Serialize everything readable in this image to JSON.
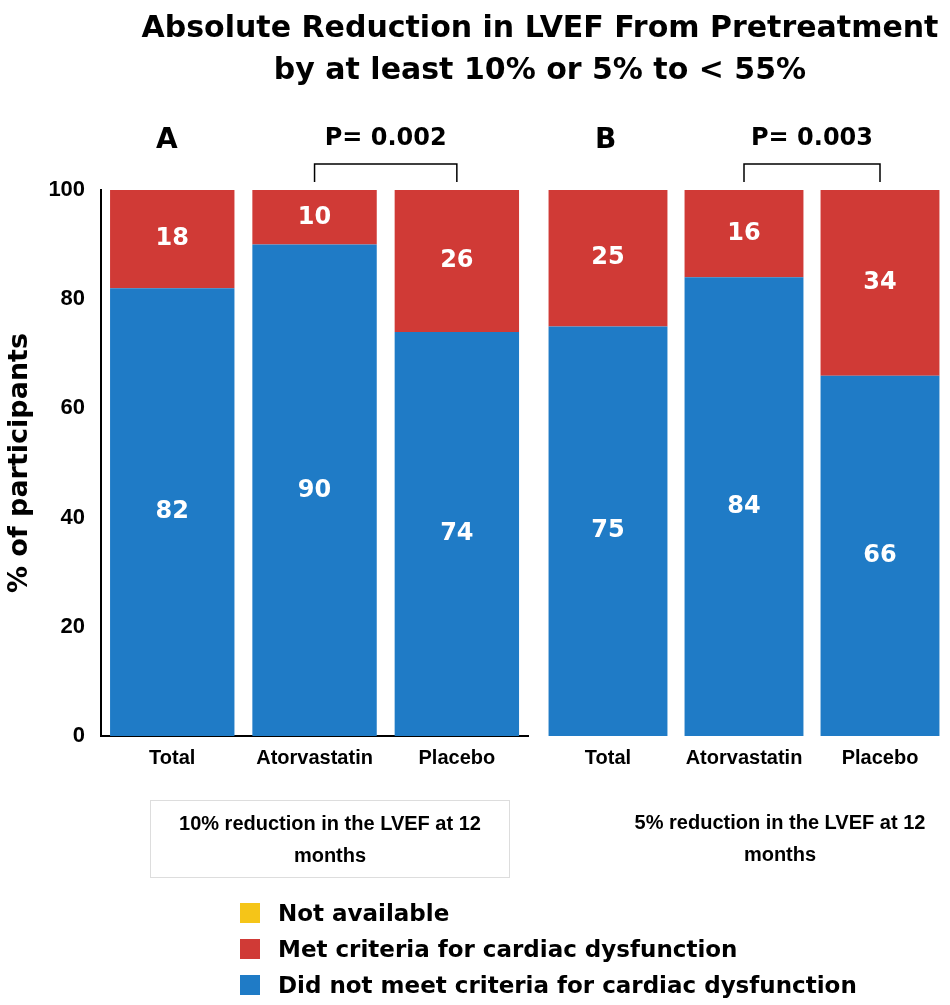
{
  "chart_data": [
    {
      "type": "bar",
      "title": "Absolute Reduction in LVEF From Pretreatment by at least 10% or 5% to < 55%",
      "subtitle": "A",
      "xlabel": "10% reduction in the LVEF at 12 months",
      "ylabel": "% of participants",
      "categories": [
        "Total",
        "Atorvastatin",
        "Placebo"
      ],
      "stacked": true,
      "data_labels": true,
      "grid": false,
      "legend": "bottom",
      "ylim": [
        0,
        100
      ],
      "yticks": [
        0,
        20,
        40,
        60,
        80,
        100
      ],
      "annotations": [
        "P= 0.002"
      ],
      "series": [
        {
          "name": "Did not meet criteria for cardiac dysfunction",
          "color": "#1f7bc6",
          "values": [
            82,
            90,
            74
          ]
        },
        {
          "name": "Met criteria for cardiac dysfunction",
          "color": "#d03a36",
          "values": [
            18,
            10,
            26
          ]
        },
        {
          "name": "Not available",
          "color": "#f5c518",
          "values": [
            null,
            null,
            null
          ]
        }
      ]
    },
    {
      "type": "bar",
      "subtitle": "B",
      "xlabel": "5% reduction in the LVEF at 12 months",
      "categories": [
        "Total",
        "Atorvastatin",
        "Placebo"
      ],
      "stacked": true,
      "data_labels": true,
      "grid": false,
      "tick_labels": "x",
      "ylim": [
        0,
        100
      ],
      "yticks": [
        0,
        20,
        40,
        60,
        80,
        100
      ],
      "annotations": [
        "P= 0.003"
      ],
      "series": [
        {
          "color": "#1f7bc6",
          "values": [
            75,
            84,
            66
          ]
        },
        {
          "color": "#d03a36",
          "values": [
            25,
            16,
            34
          ]
        }
      ]
    }
  ]
}
